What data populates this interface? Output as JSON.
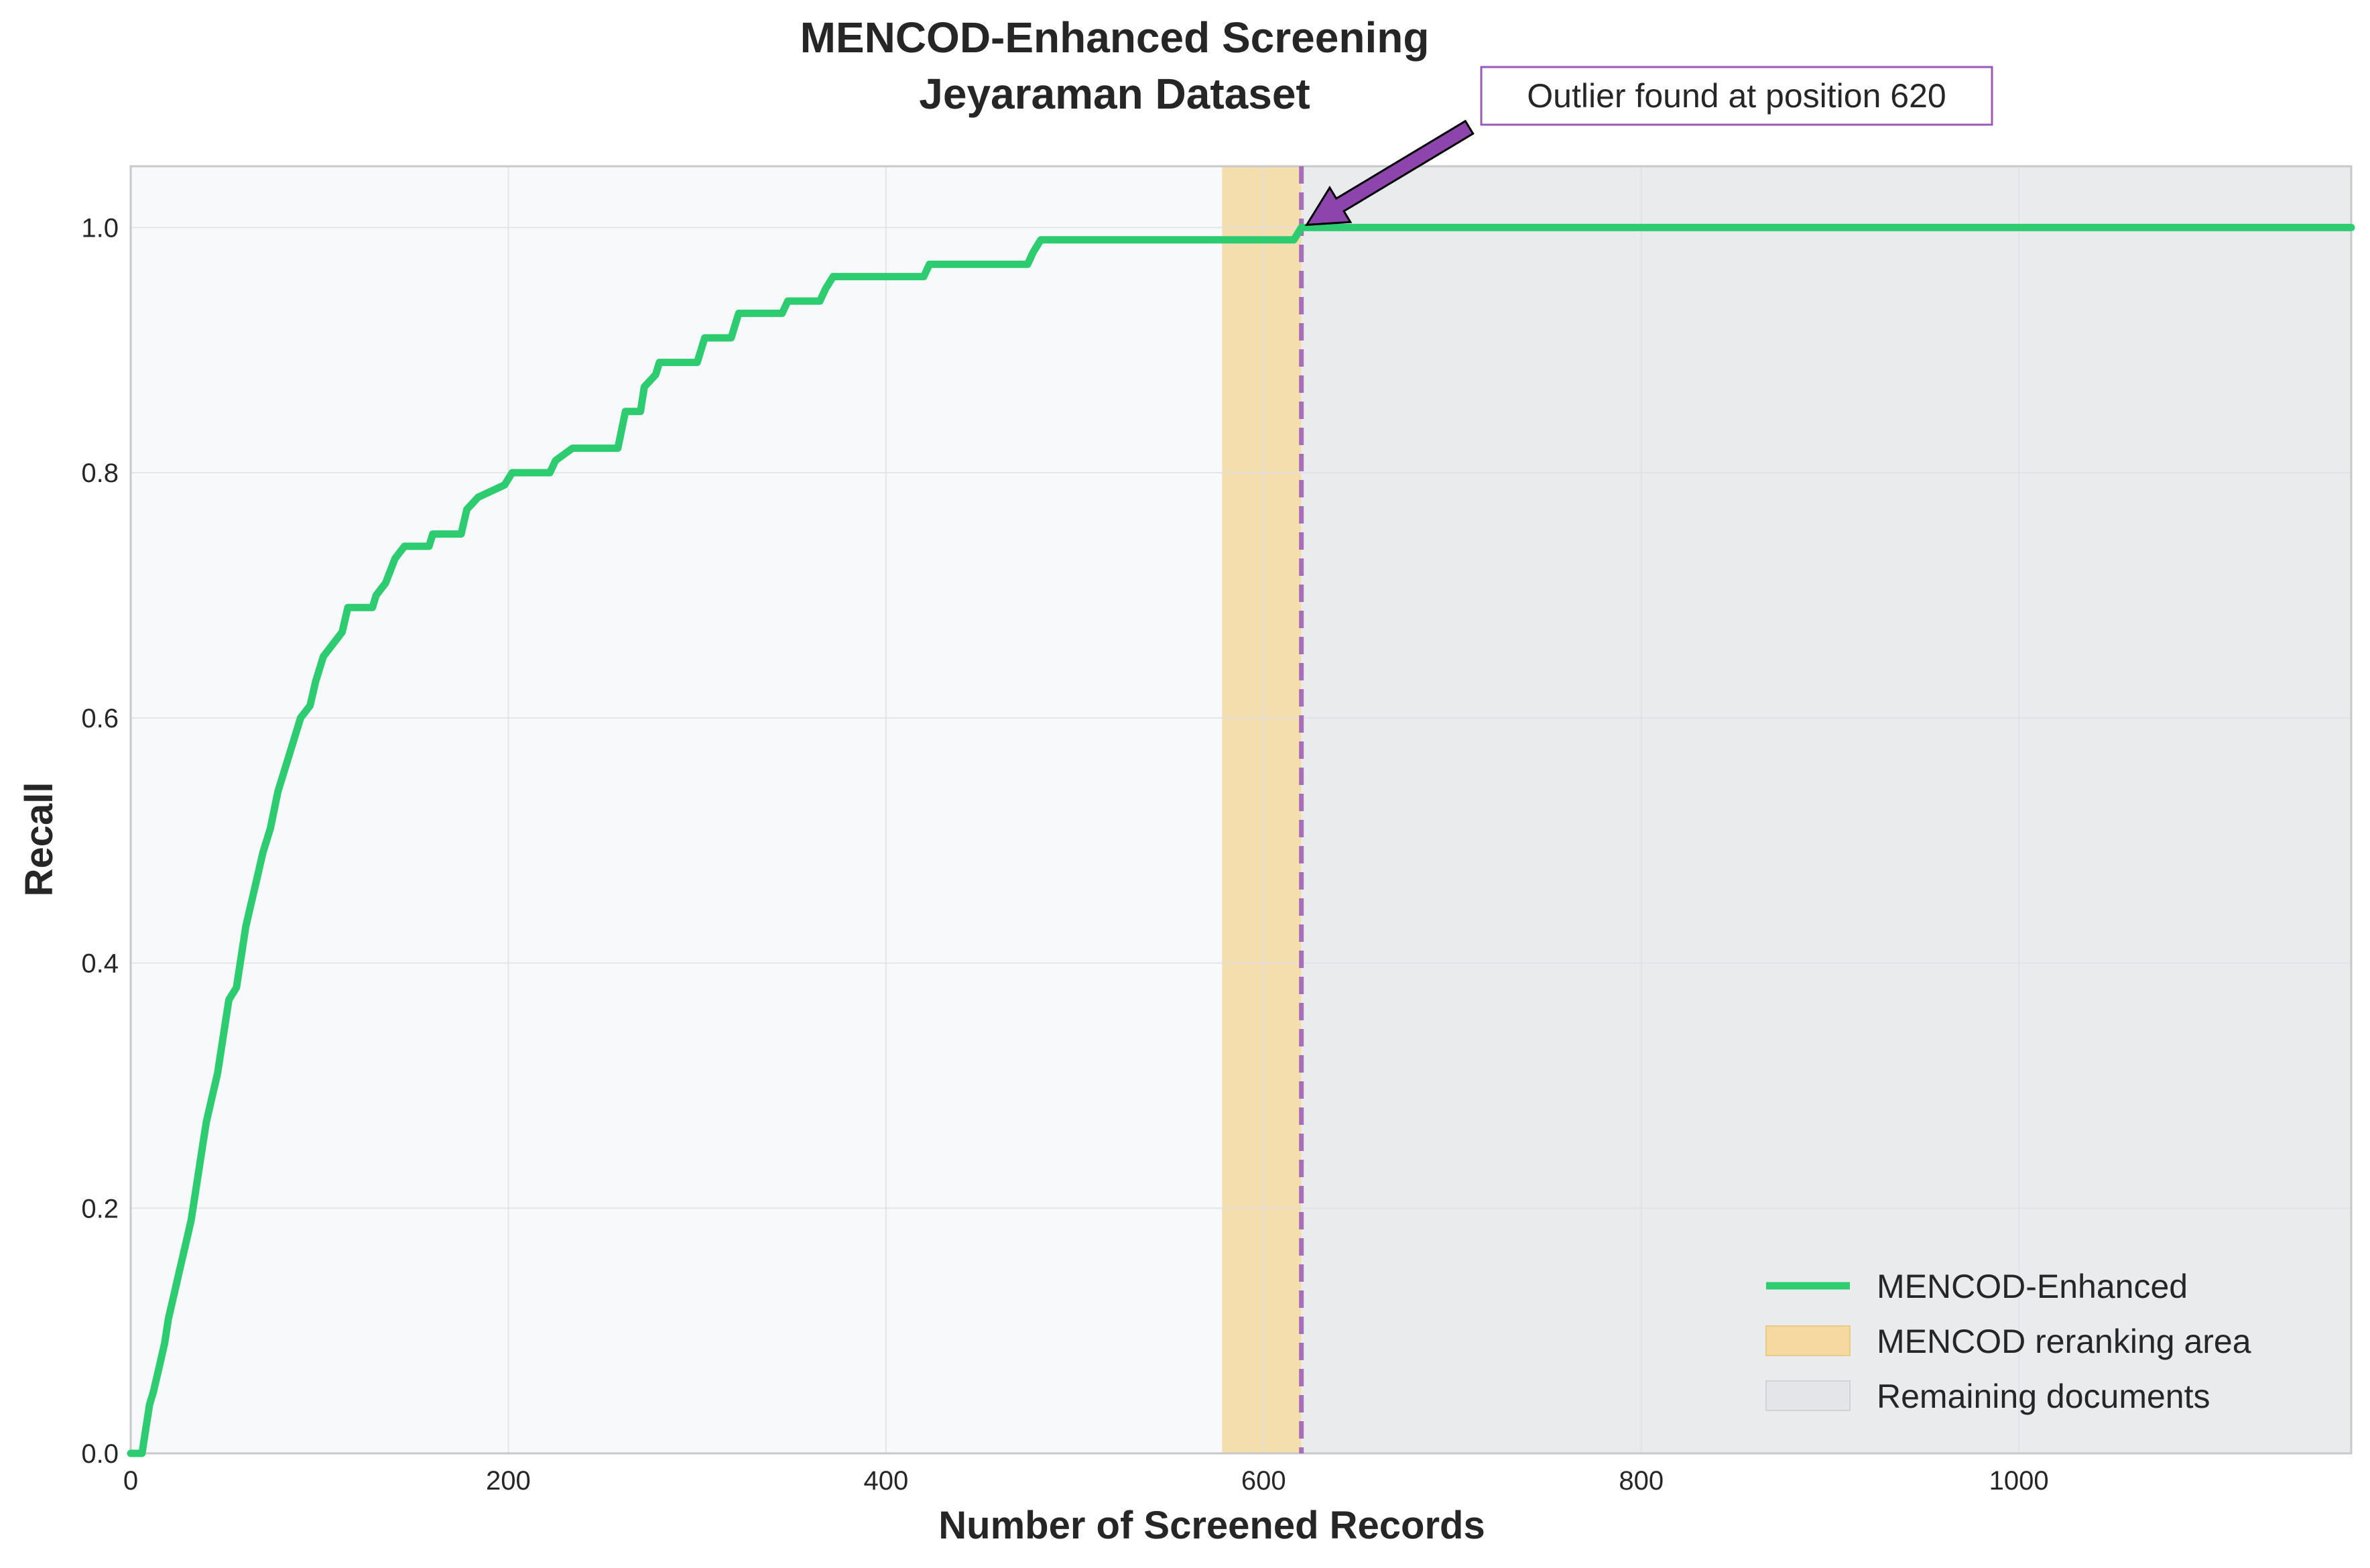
{
  "colors": {
    "plot_bg": "#f8f9fb",
    "grid": "#dde0e5",
    "series": "#2ecc71",
    "rerank_area": "#f5d9a0",
    "remaining_area": "#e4e5e8",
    "outlier_line": "#9b59b6",
    "arrow_fill": "#8e44ad",
    "spine": "#c8c8c8"
  },
  "chart_data": {
    "type": "line",
    "title_lines": [
      "MENCOD-Enhanced Screening",
      "Jeyaraman Dataset"
    ],
    "xlabel": "Number of Screened Records",
    "ylabel": "Recall",
    "xlim": [
      0,
      1176
    ],
    "ylim": [
      0,
      1.05
    ],
    "x_ticks": [
      0,
      200,
      400,
      600,
      800,
      1000
    ],
    "x_tick_labels": [
      "0",
      "200",
      "400",
      "600",
      "800",
      "1000"
    ],
    "y_ticks": [
      0.0,
      0.2,
      0.4,
      0.6,
      0.8,
      1.0
    ],
    "y_tick_labels": [
      "0.0",
      "0.2",
      "0.4",
      "0.6",
      "0.8",
      "1.0"
    ],
    "grid": true,
    "legend_position": "bottom-right",
    "series": [
      {
        "name": "MENCOD-Enhanced",
        "points": [
          [
            0,
            0.0
          ],
          [
            6,
            0.0
          ],
          [
            8,
            0.02
          ],
          [
            10,
            0.04
          ],
          [
            12,
            0.05
          ],
          [
            15,
            0.07
          ],
          [
            18,
            0.09
          ],
          [
            20,
            0.11
          ],
          [
            23,
            0.13
          ],
          [
            26,
            0.15
          ],
          [
            29,
            0.17
          ],
          [
            32,
            0.19
          ],
          [
            34,
            0.21
          ],
          [
            37,
            0.24
          ],
          [
            40,
            0.27
          ],
          [
            43,
            0.29
          ],
          [
            46,
            0.31
          ],
          [
            49,
            0.34
          ],
          [
            52,
            0.37
          ],
          [
            56,
            0.38
          ],
          [
            58,
            0.4
          ],
          [
            61,
            0.43
          ],
          [
            64,
            0.45
          ],
          [
            67,
            0.47
          ],
          [
            70,
            0.49
          ],
          [
            74,
            0.51
          ],
          [
            78,
            0.54
          ],
          [
            82,
            0.56
          ],
          [
            86,
            0.58
          ],
          [
            90,
            0.6
          ],
          [
            95,
            0.61
          ],
          [
            98,
            0.63
          ],
          [
            102,
            0.65
          ],
          [
            107,
            0.66
          ],
          [
            112,
            0.67
          ],
          [
            115,
            0.69
          ],
          [
            128,
            0.69
          ],
          [
            130,
            0.7
          ],
          [
            135,
            0.71
          ],
          [
            140,
            0.73
          ],
          [
            145,
            0.74
          ],
          [
            158,
            0.74
          ],
          [
            160,
            0.75
          ],
          [
            175,
            0.75
          ],
          [
            178,
            0.77
          ],
          [
            184,
            0.78
          ],
          [
            198,
            0.79
          ],
          [
            202,
            0.8
          ],
          [
            222,
            0.8
          ],
          [
            225,
            0.81
          ],
          [
            234,
            0.82
          ],
          [
            258,
            0.82
          ],
          [
            262,
            0.85
          ],
          [
            270,
            0.85
          ],
          [
            272,
            0.87
          ],
          [
            278,
            0.88
          ],
          [
            280,
            0.89
          ],
          [
            300,
            0.89
          ],
          [
            304,
            0.91
          ],
          [
            318,
            0.91
          ],
          [
            322,
            0.93
          ],
          [
            345,
            0.93
          ],
          [
            348,
            0.94
          ],
          [
            365,
            0.94
          ],
          [
            368,
            0.95
          ],
          [
            372,
            0.96
          ],
          [
            420,
            0.96
          ],
          [
            423,
            0.97
          ],
          [
            475,
            0.97
          ],
          [
            478,
            0.98
          ],
          [
            482,
            0.99
          ],
          [
            616,
            0.99
          ],
          [
            620,
            1.0
          ],
          [
            1176,
            1.0
          ]
        ]
      }
    ],
    "shaded_regions": [
      {
        "name": "MENCOD reranking area",
        "x": [
          578,
          620
        ]
      },
      {
        "name": "Remaining documents",
        "x": [
          620,
          1176
        ]
      }
    ],
    "vertical_line": {
      "x": 620
    },
    "annotation": {
      "text": "Outlier found at position 620",
      "point": [
        620,
        1.0
      ]
    },
    "legend": [
      {
        "label": "MENCOD-Enhanced",
        "kind": "line"
      },
      {
        "label": "MENCOD reranking area",
        "kind": "rerank"
      },
      {
        "label": "Remaining documents",
        "kind": "remaining"
      }
    ]
  }
}
